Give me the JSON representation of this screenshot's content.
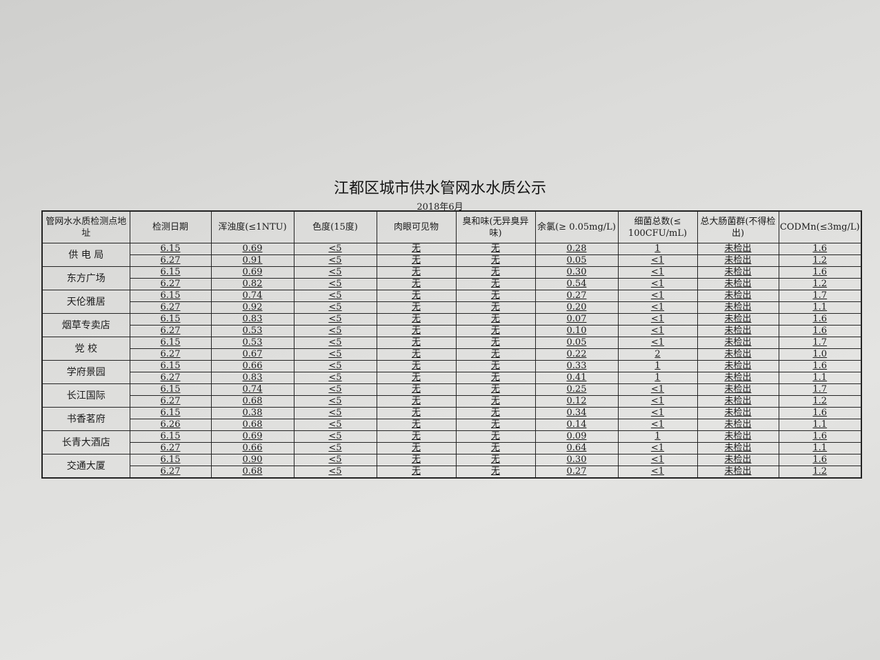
{
  "title": "江都区城市供水管网水水质公示",
  "subtitle": "2018年6月",
  "table": {
    "headers": [
      "管网水水质检测点地址",
      "检测日期",
      "浑浊度(≤1NTU)",
      "色度(15度)",
      "肉眼可见物",
      "臭和味(无异臭异味)",
      "余氯(≥ 0.05mg/L)",
      "细菌总数(≤ 100CFU/mL)",
      "总大肠菌群(不得检出)",
      "CODMn(≤3mg/L)"
    ],
    "sites": [
      {
        "name": "供 电 局",
        "rows": [
          [
            "6.15",
            "0.69",
            "<5",
            "无",
            "无",
            "0.28",
            "1",
            "未检出",
            "1.6"
          ],
          [
            "6.27",
            "0.91",
            "<5",
            "无",
            "无",
            "0.05",
            "<1",
            "未检出",
            "1.2"
          ]
        ]
      },
      {
        "name": "东方广场",
        "rows": [
          [
            "6.15",
            "0.69",
            "<5",
            "无",
            "无",
            "0.30",
            "<1",
            "未检出",
            "1.6"
          ],
          [
            "6.27",
            "0.82",
            "<5",
            "无",
            "无",
            "0.54",
            "<1",
            "未检出",
            "1.2"
          ]
        ]
      },
      {
        "name": "天伦雅居",
        "rows": [
          [
            "6.15",
            "0.74",
            "<5",
            "无",
            "无",
            "0.27",
            "<1",
            "未检出",
            "1.7"
          ],
          [
            "6.27",
            "0.92",
            "<5",
            "无",
            "无",
            "0.20",
            "<1",
            "未检出",
            "1.1"
          ]
        ]
      },
      {
        "name": "烟草专卖店",
        "rows": [
          [
            "6.15",
            "0.83",
            "<5",
            "无",
            "无",
            "0.07",
            "<1",
            "未检出",
            "1.6"
          ],
          [
            "6.27",
            "0.53",
            "<5",
            "无",
            "无",
            "0.10",
            "<1",
            "未检出",
            "1.6"
          ]
        ]
      },
      {
        "name": "党  校",
        "rows": [
          [
            "6.15",
            "0.53",
            "<5",
            "无",
            "无",
            "0.05",
            "<1",
            "未检出",
            "1.7"
          ],
          [
            "6.27",
            "0.67",
            "<5",
            "无",
            "无",
            "0.22",
            "2",
            "未检出",
            "1.0"
          ]
        ]
      },
      {
        "name": "学府景园",
        "rows": [
          [
            "6.15",
            "0.66",
            "<5",
            "无",
            "无",
            "0.33",
            "1",
            "未检出",
            "1.6"
          ],
          [
            "6.27",
            "0.83",
            "<5",
            "无",
            "无",
            "0.41",
            "1",
            "未检出",
            "1.1"
          ]
        ]
      },
      {
        "name": "长江国际",
        "rows": [
          [
            "6.15",
            "0.74",
            "<5",
            "无",
            "无",
            "0.25",
            "<1",
            "未检出",
            "1.7"
          ],
          [
            "6.27",
            "0.68",
            "<5",
            "无",
            "无",
            "0.12",
            "<1",
            "未检出",
            "1.2"
          ]
        ]
      },
      {
        "name": "书香茗府",
        "rows": [
          [
            "6.15",
            "0.38",
            "<5",
            "无",
            "无",
            "0.34",
            "<1",
            "未检出",
            "1.6"
          ],
          [
            "6.26",
            "0.68",
            "<5",
            "无",
            "无",
            "0.14",
            "<1",
            "未检出",
            "1.1"
          ]
        ]
      },
      {
        "name": "长青大酒店",
        "rows": [
          [
            "6.15",
            "0.69",
            "<5",
            "无",
            "无",
            "0.09",
            "1",
            "未检出",
            "1.6"
          ],
          [
            "6.27",
            "0.66",
            "<5",
            "无",
            "无",
            "0.64",
            "<1",
            "未检出",
            "1.1"
          ]
        ]
      },
      {
        "name": "交通大厦",
        "rows": [
          [
            "6.15",
            "0.90",
            "<5",
            "无",
            "无",
            "0.30",
            "<1",
            "未检出",
            "1.6"
          ],
          [
            "6.27",
            "0.68",
            "<5",
            "无",
            "无",
            "0.27",
            "<1",
            "未检出",
            "1.2"
          ]
        ]
      }
    ]
  }
}
